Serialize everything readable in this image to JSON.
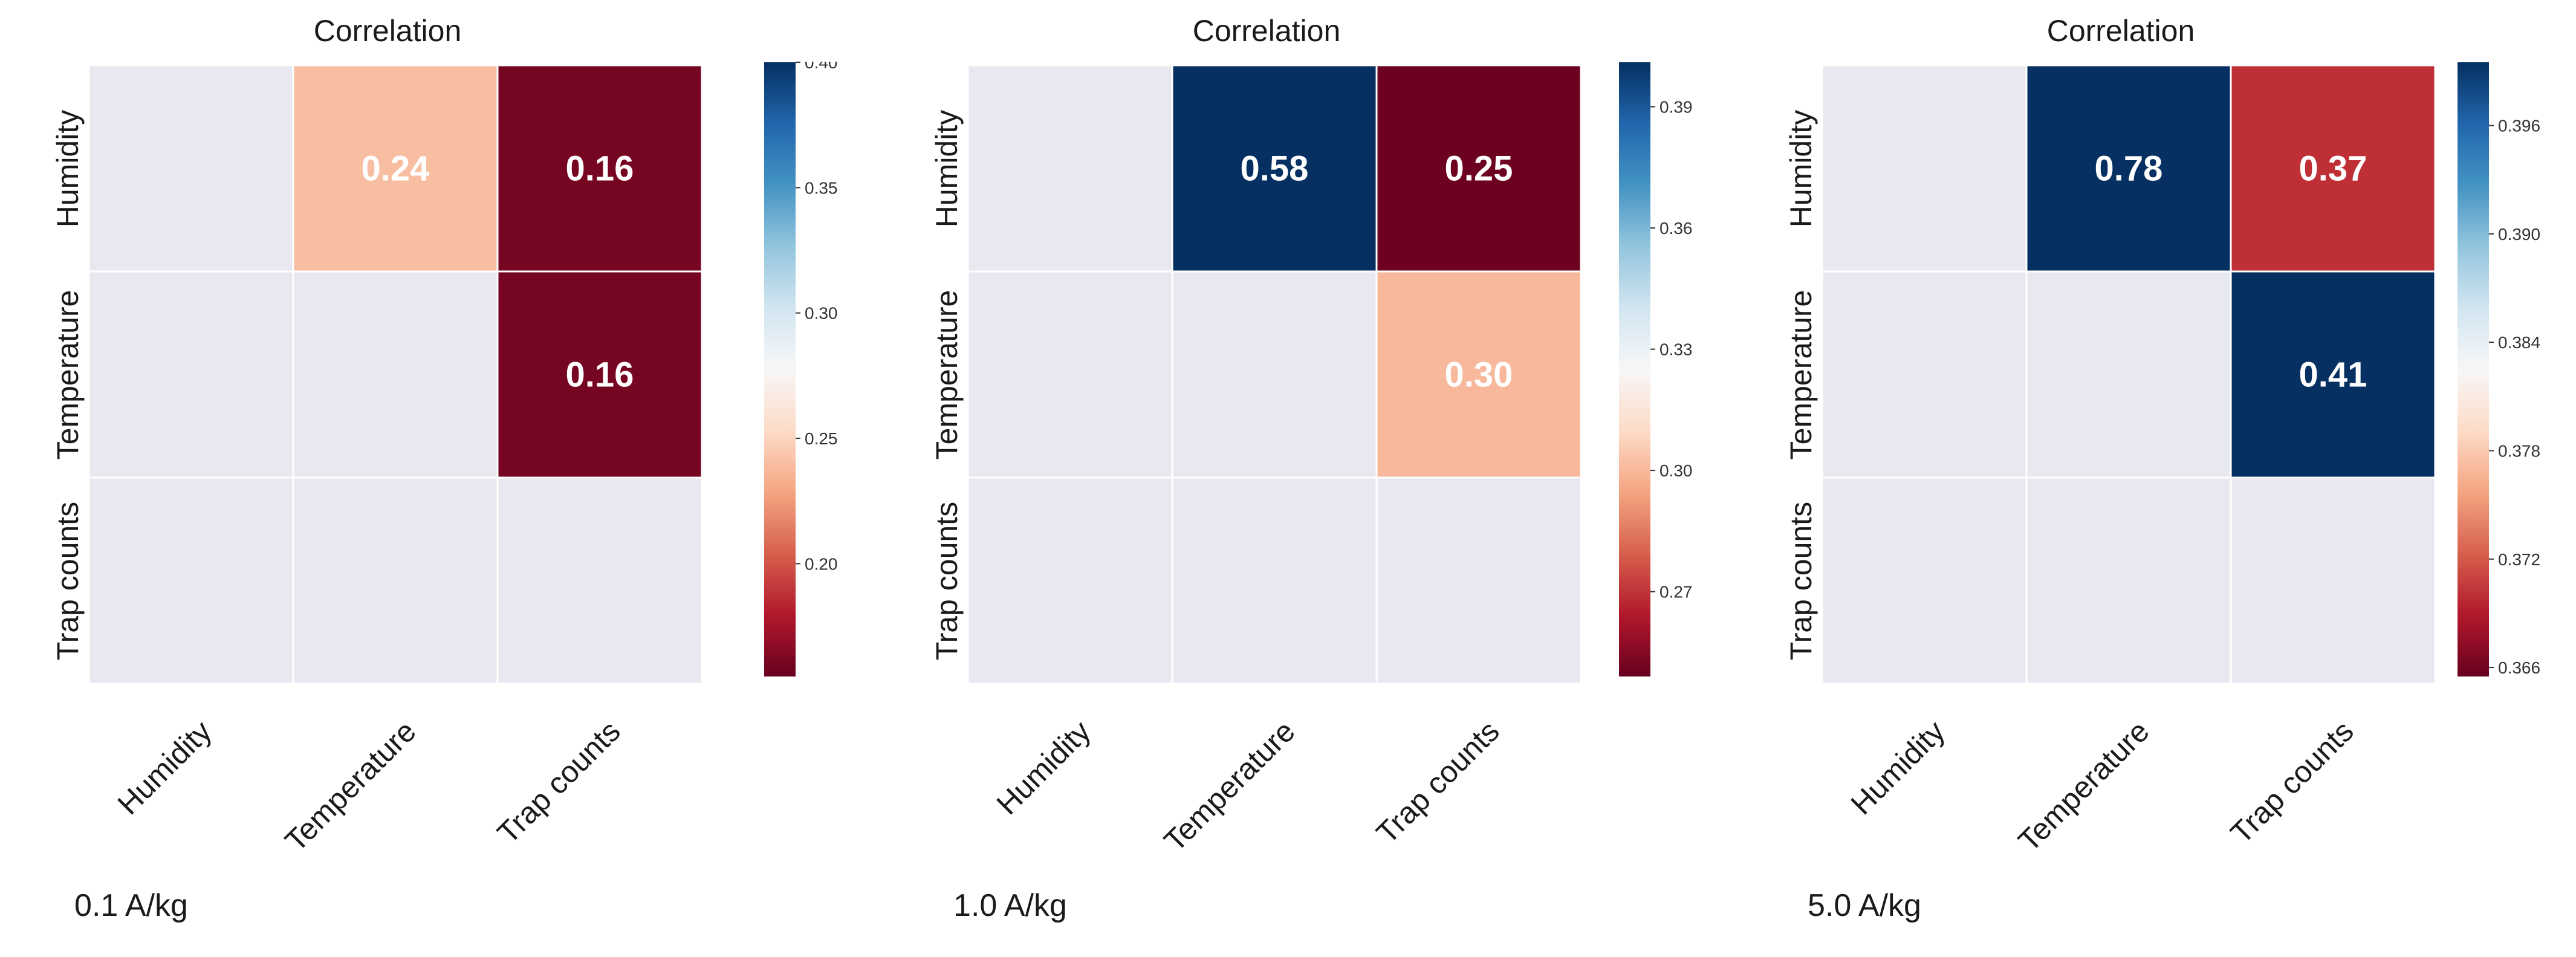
{
  "chart_data": [
    {
      "type": "heatmap",
      "title": "Correlation",
      "caption": "0.1 A/kg",
      "rows": [
        "Humidity",
        "Temperature",
        "Trap counts"
      ],
      "columns": [
        "Humidity",
        "Temperature",
        "Trap counts"
      ],
      "values": [
        [
          null,
          0.24,
          0.16
        ],
        [
          null,
          null,
          0.16
        ],
        [
          null,
          null,
          null
        ]
      ],
      "annotations": [
        [
          "",
          "0.24",
          "0.16"
        ],
        [
          "",
          "",
          "0.16"
        ],
        [
          "",
          "",
          ""
        ]
      ],
      "colorbar": {
        "colormap": "RdBu",
        "range": [
          0.155,
          0.4
        ],
        "ticks": [
          "0.20",
          "0.25",
          "0.30",
          "0.35",
          "0.40"
        ]
      }
    },
    {
      "type": "heatmap",
      "title": "Correlation",
      "caption": "1.0 A/kg",
      "rows": [
        "Humidity",
        "Temperature",
        "Trap counts"
      ],
      "columns": [
        "Humidity",
        "Temperature",
        "Trap counts"
      ],
      "values": [
        [
          null,
          0.58,
          0.25
        ],
        [
          null,
          null,
          0.3
        ],
        [
          null,
          null,
          null
        ]
      ],
      "annotations": [
        [
          "",
          "0.58",
          "0.25"
        ],
        [
          "",
          "",
          "0.30"
        ],
        [
          "",
          "",
          ""
        ]
      ],
      "colorbar": {
        "colormap": "RdBu",
        "range": [
          0.249,
          0.401
        ],
        "ticks": [
          "0.27",
          "0.30",
          "0.33",
          "0.36",
          "0.39"
        ]
      }
    },
    {
      "type": "heatmap",
      "title": "Correlation",
      "caption": "5.0 A/kg",
      "rows": [
        "Humidity",
        "Temperature",
        "Trap counts"
      ],
      "columns": [
        "Humidity",
        "Temperature",
        "Trap counts"
      ],
      "values": [
        [
          null,
          0.78,
          0.37
        ],
        [
          null,
          null,
          0.41
        ],
        [
          null,
          null,
          null
        ]
      ],
      "annotations": [
        [
          "",
          "0.78",
          "0.37"
        ],
        [
          "",
          "",
          "0.41"
        ],
        [
          "",
          "",
          ""
        ]
      ],
      "colorbar": {
        "colormap": "RdBu",
        "range": [
          0.3655,
          0.3995
        ],
        "ticks": [
          "0.366",
          "0.372",
          "0.378",
          "0.384",
          "0.390",
          "0.396"
        ]
      }
    }
  ],
  "colors": {
    "nan_cell": "#e8e8f0",
    "grid_line": "#ffffff",
    "rdbu_stops": [
      "#67001f",
      "#b2182b",
      "#d6604d",
      "#f4a582",
      "#fddbc7",
      "#f7f7f7",
      "#d1e5f0",
      "#92c5de",
      "#4393c3",
      "#2166ac",
      "#053061"
    ]
  }
}
